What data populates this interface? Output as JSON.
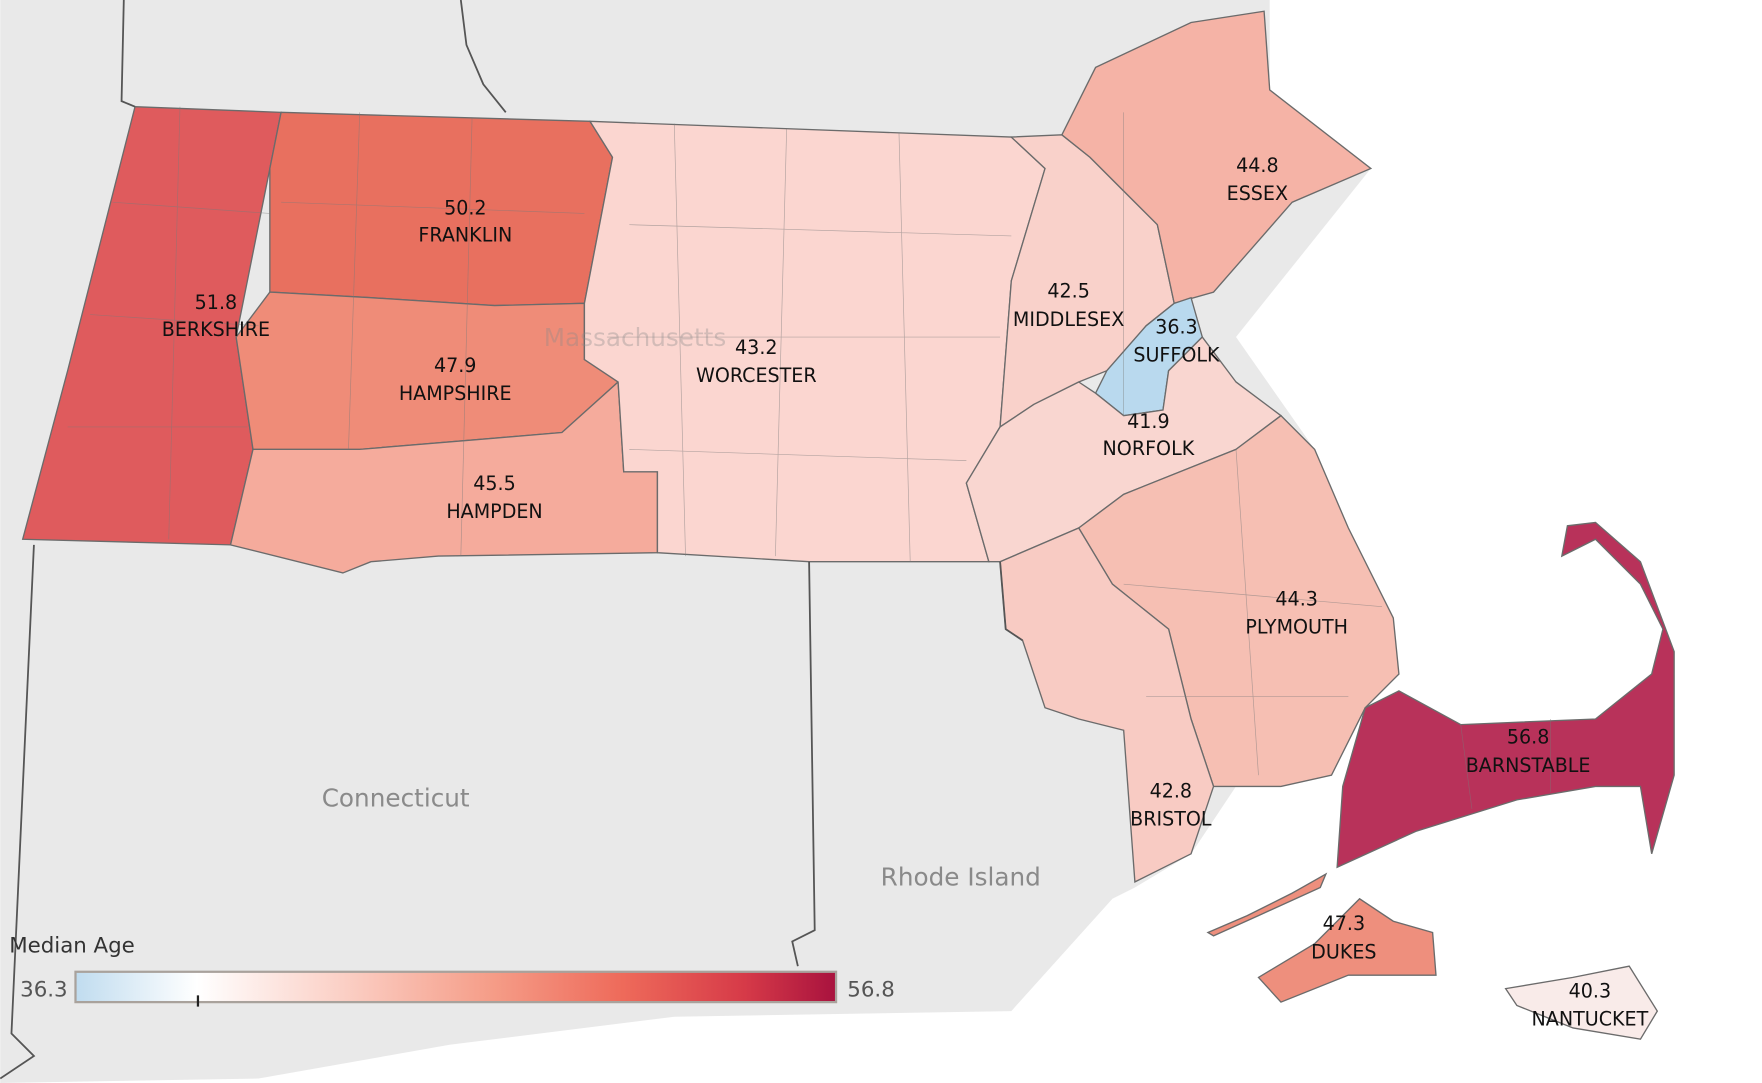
{
  "legend": {
    "title": "Median Age",
    "min": "36.3",
    "max": "56.8",
    "colors": [
      "#c0dcef",
      "#ffffff",
      "#fbd0c6",
      "#f59c87",
      "#ee6a5a",
      "#d63a48",
      "#a8123e"
    ]
  },
  "place_labels": {
    "connecticut": "Connecticut",
    "rhode_island": "Rhode Island",
    "massachusetts": "Massachusetts"
  },
  "counties": [
    {
      "name": "BERKSHIRE",
      "value": "51.8",
      "color": "#df5b5d"
    },
    {
      "name": "FRANKLIN",
      "value": "50.2",
      "color": "#e8705f"
    },
    {
      "name": "HAMPSHIRE",
      "value": "47.9",
      "color": "#ef8c78"
    },
    {
      "name": "HAMPDEN",
      "value": "45.5",
      "color": "#f5ab9c"
    },
    {
      "name": "WORCESTER",
      "value": "43.2",
      "color": "#fbd6d0"
    },
    {
      "name": "MIDDLESEX",
      "value": "42.5",
      "color": "#f9d1ca"
    },
    {
      "name": "ESSEX",
      "value": "44.8",
      "color": "#f5b3a6"
    },
    {
      "name": "SUFFOLK",
      "value": "36.3",
      "color": "#b9d9ee"
    },
    {
      "name": "NORFOLK",
      "value": "41.9",
      "color": "#f9d6d0"
    },
    {
      "name": "PLYMOUTH",
      "value": "44.3",
      "color": "#f6bfb3"
    },
    {
      "name": "BRISTOL",
      "value": "42.8",
      "color": "#f8cbc3"
    },
    {
      "name": "BARNSTABLE",
      "value": "56.8",
      "color": "#b8325a"
    },
    {
      "name": "DUKES",
      "value": "47.3",
      "color": "#ee8f7d"
    },
    {
      "name": "NANTUCKET",
      "value": "40.3",
      "color": "#f9ebe9"
    }
  ]
}
